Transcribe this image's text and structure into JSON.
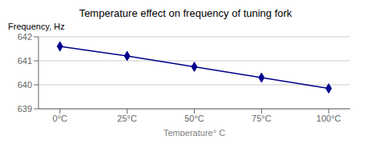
{
  "chart_data": {
    "type": "line",
    "title": "Temperature effect on frequency of tuning fork",
    "xlabel": "Temperature° C",
    "ylabel": "Frequency, Hz",
    "x": [
      0,
      25,
      50,
      75,
      100
    ],
    "values": [
      641.6,
      641.2,
      640.75,
      640.3,
      639.85
    ],
    "xlim": [
      -8,
      108
    ],
    "xticks": [
      {
        "value": 0,
        "label": "0°C"
      },
      {
        "value": 25,
        "label": "25°C"
      },
      {
        "value": 50,
        "label": "50°C"
      },
      {
        "value": 75,
        "label": "75°C"
      },
      {
        "value": 100,
        "label": "100°C"
      }
    ],
    "ylim": [
      639,
      642
    ],
    "yticks": [
      639,
      640,
      641,
      642
    ],
    "color": "#00008B",
    "marker": "diamond",
    "grid": "y"
  }
}
